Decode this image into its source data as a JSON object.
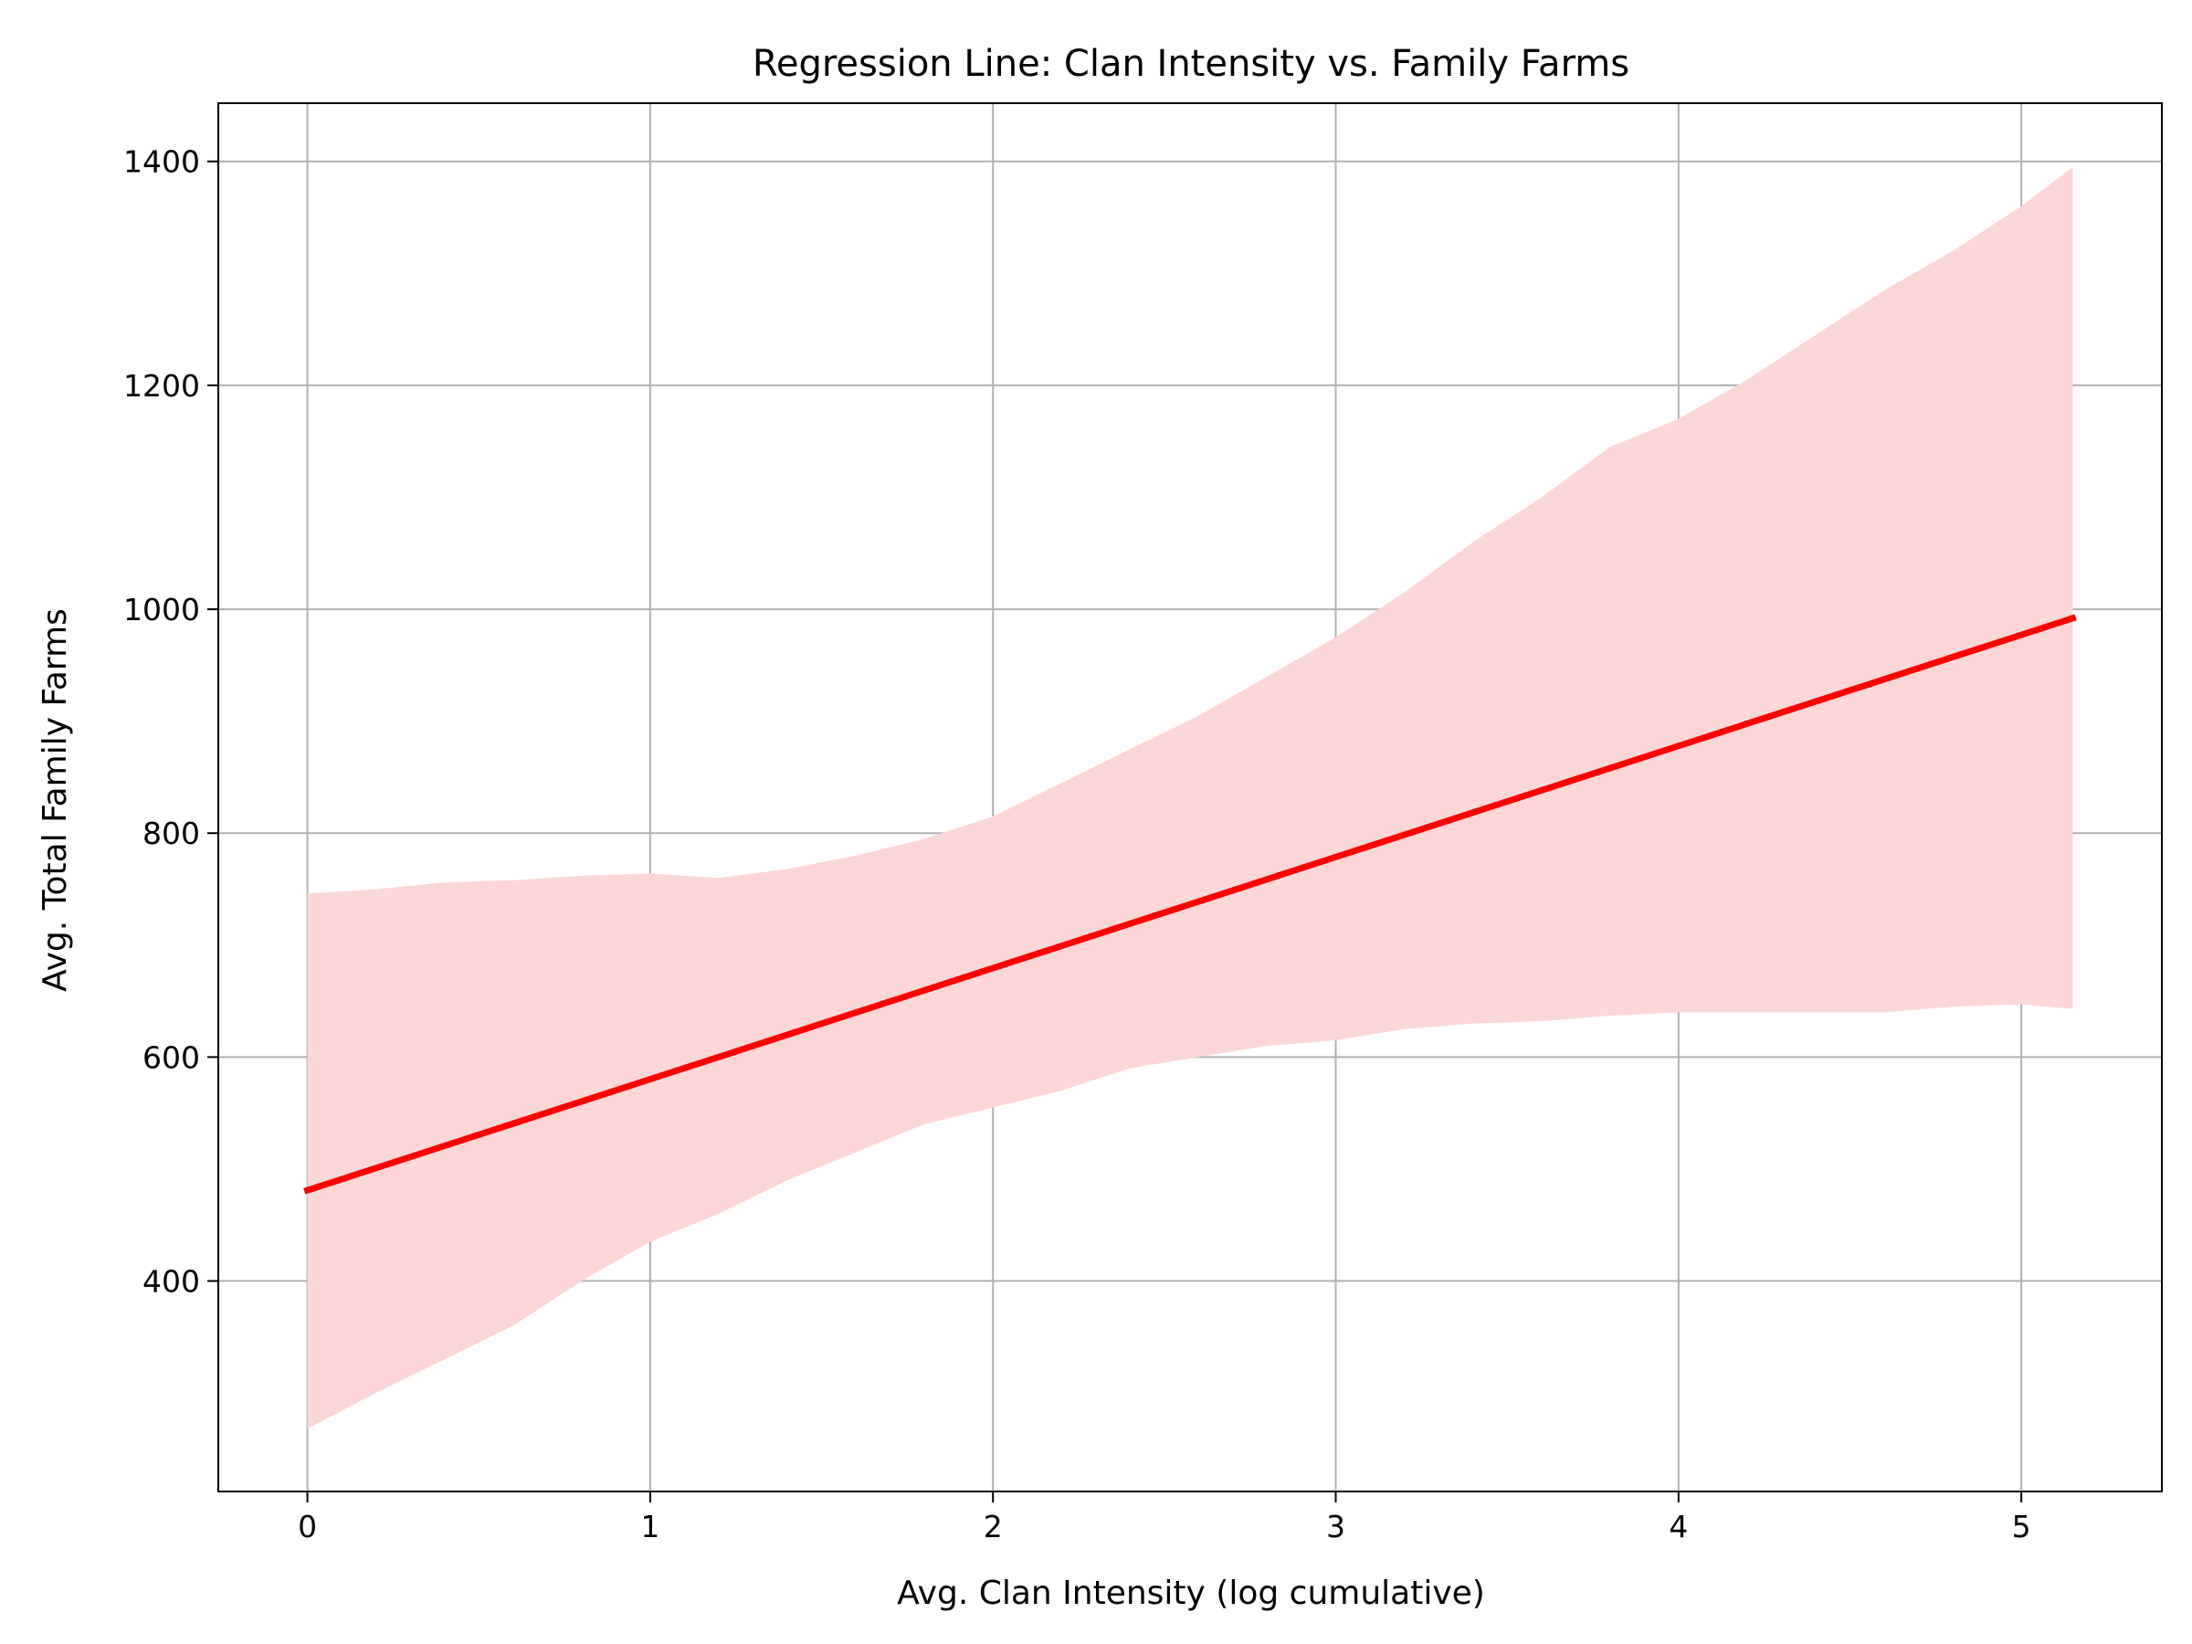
{
  "chart_data": {
    "type": "line",
    "title": "Regression Line: Clan Intensity vs. Family Farms",
    "xlabel": "Avg. Clan Intensity (log cumulative)",
    "ylabel": "Avg. Total Family Farms",
    "xlim": [
      -0.26,
      5.41
    ],
    "ylim": [
      212,
      1452
    ],
    "grid": true,
    "xticks": [
      0,
      1,
      2,
      3,
      4,
      5
    ],
    "yticks": [
      400,
      600,
      800,
      1000,
      1200,
      1400
    ],
    "colors": {
      "line": "#ff0000",
      "band": "#fdd7d7",
      "grid": "#b0b0b0"
    },
    "series": [
      {
        "type": "line",
        "x": [
          0,
          5.15
        ],
        "values": [
          481,
          992
        ]
      },
      {
        "type": "band",
        "x": [
          0,
          0.2,
          0.4,
          0.6,
          0.8,
          1.0,
          1.2,
          1.4,
          1.6,
          1.8,
          2.0,
          2.2,
          2.4,
          2.6,
          2.8,
          3.0,
          3.2,
          3.4,
          3.6,
          3.8,
          4.0,
          4.2,
          4.4,
          4.6,
          4.8,
          5.0,
          5.15
        ],
        "upper": [
          746,
          750,
          756,
          758,
          762,
          764,
          760,
          768,
          780,
          795,
          815,
          845,
          875,
          905,
          940,
          975,
          1015,
          1060,
          1100,
          1145,
          1170,
          1205,
          1245,
          1285,
          1320,
          1360,
          1395
        ],
        "lower": [
          268,
          300,
          330,
          360,
          400,
          435,
          460,
          490,
          515,
          540,
          555,
          570,
          590,
          600,
          610,
          615,
          625,
          630,
          632,
          637,
          640,
          640,
          640,
          640,
          645,
          647,
          643
        ]
      }
    ]
  }
}
